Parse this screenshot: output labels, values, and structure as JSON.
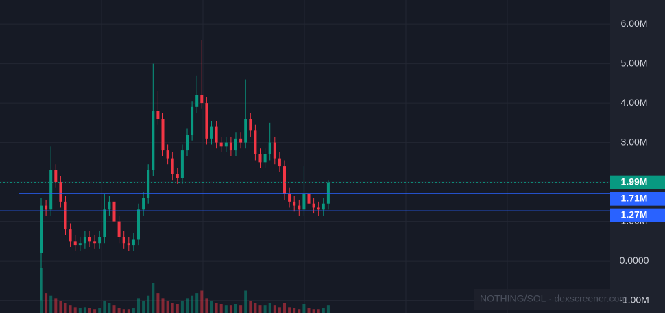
{
  "chart_data": {
    "type": "candlestick",
    "watermark": "NOTHING/SOL · dexscreener.com",
    "up_color": "#089981",
    "down_color": "#f23645",
    "ylim": [
      -1.32,
      6.61
    ],
    "yticks": [
      {
        "value": 6,
        "label": "6.00M"
      },
      {
        "value": 5,
        "label": "5.00M"
      },
      {
        "value": 4,
        "label": "4.00M"
      },
      {
        "value": 3,
        "label": "3.00M"
      },
      {
        "value": 2,
        "label": "2.00M"
      },
      {
        "value": 1,
        "label": "1.00M"
      },
      {
        "value": 0,
        "label": "0.0000"
      },
      {
        "value": -1,
        "label": "-1.00M"
      }
    ],
    "grid": true,
    "price_lines": [
      {
        "value": 1.99,
        "label": "1.99M",
        "color": "#089981",
        "style": "dotted"
      },
      {
        "value": 1.71,
        "label": "1.71M",
        "color": "#2962ff",
        "style": "solid"
      },
      {
        "value": 1.27,
        "label": "1.27M",
        "color": "#2962ff",
        "style": "solid"
      }
    ],
    "open": [
      0.2,
      1.4,
      1.3,
      2.3,
      2.0,
      1.5,
      0.8,
      0.5,
      0.4,
      0.45,
      0.6,
      0.5,
      0.45,
      0.6,
      1.3,
      1.5,
      1.0,
      0.6,
      0.45,
      0.4,
      0.55,
      1.3,
      1.6,
      2.3,
      3.8,
      3.6,
      2.8,
      2.6,
      2.2,
      2.1,
      2.8,
      3.2,
      3.9,
      4.2,
      4.0,
      3.1,
      3.4,
      3.0,
      2.9,
      3.0,
      2.8,
      3.1,
      3.0,
      3.6,
      3.3,
      2.7,
      2.5,
      2.7,
      3.0,
      2.6,
      2.4,
      1.7,
      1.5,
      1.4,
      1.3,
      1.7,
      1.45,
      1.35,
      1.3,
      1.45
    ],
    "high": [
      1.6,
      1.55,
      2.9,
      2.45,
      2.15,
      1.65,
      0.95,
      0.65,
      0.6,
      0.75,
      0.75,
      0.65,
      0.75,
      1.7,
      1.65,
      1.65,
      1.15,
      0.75,
      0.6,
      0.7,
      1.45,
      1.75,
      2.45,
      5.0,
      4.3,
      3.75,
      2.95,
      2.75,
      2.35,
      2.95,
      3.35,
      4.05,
      4.7,
      5.6,
      4.15,
      3.55,
      3.55,
      3.15,
      3.15,
      3.15,
      3.25,
      3.25,
      4.6,
      3.75,
      3.45,
      2.85,
      2.85,
      3.5,
      3.15,
      2.75,
      2.55,
      1.85,
      1.65,
      1.55,
      2.4,
      1.85,
      1.6,
      1.5,
      1.6,
      2.05
    ],
    "low": [
      -1.0,
      1.15,
      1.15,
      1.85,
      1.35,
      0.65,
      0.35,
      0.25,
      0.25,
      0.3,
      0.35,
      0.3,
      0.3,
      0.45,
      1.15,
      0.85,
      0.45,
      0.3,
      0.25,
      0.25,
      0.4,
      1.15,
      1.45,
      2.15,
      3.45,
      2.65,
      2.45,
      2.05,
      1.95,
      1.95,
      2.65,
      3.05,
      3.75,
      3.85,
      2.95,
      2.95,
      2.85,
      2.75,
      2.75,
      2.65,
      2.65,
      2.85,
      2.85,
      3.15,
      2.55,
      2.35,
      2.35,
      2.55,
      2.45,
      2.25,
      1.55,
      1.35,
      1.25,
      1.15,
      1.15,
      1.3,
      1.2,
      1.15,
      1.15,
      1.3
    ],
    "close": [
      1.4,
      1.3,
      2.3,
      2.0,
      1.5,
      0.8,
      0.5,
      0.4,
      0.45,
      0.6,
      0.5,
      0.45,
      0.6,
      1.3,
      1.5,
      1.0,
      0.6,
      0.45,
      0.4,
      0.55,
      1.3,
      1.6,
      2.3,
      3.8,
      3.6,
      2.8,
      2.6,
      2.2,
      2.1,
      2.8,
      3.2,
      3.9,
      4.2,
      4.0,
      3.1,
      3.4,
      3.0,
      2.9,
      3.0,
      2.8,
      3.1,
      3.0,
      3.6,
      3.3,
      2.7,
      2.5,
      2.7,
      3.0,
      2.6,
      2.4,
      1.7,
      1.5,
      1.4,
      1.3,
      1.7,
      1.45,
      1.35,
      1.3,
      1.45,
      1.99
    ],
    "volume": [
      90,
      40,
      35,
      30,
      25,
      20,
      15,
      12,
      10,
      12,
      10,
      8,
      10,
      25,
      20,
      15,
      10,
      8,
      8,
      10,
      30,
      25,
      35,
      60,
      40,
      30,
      25,
      20,
      18,
      25,
      30,
      35,
      40,
      45,
      30,
      25,
      20,
      18,
      15,
      15,
      18,
      15,
      45,
      25,
      20,
      15,
      15,
      20,
      15,
      12,
      20,
      12,
      10,
      8,
      18,
      10,
      8,
      8,
      10,
      15
    ]
  }
}
